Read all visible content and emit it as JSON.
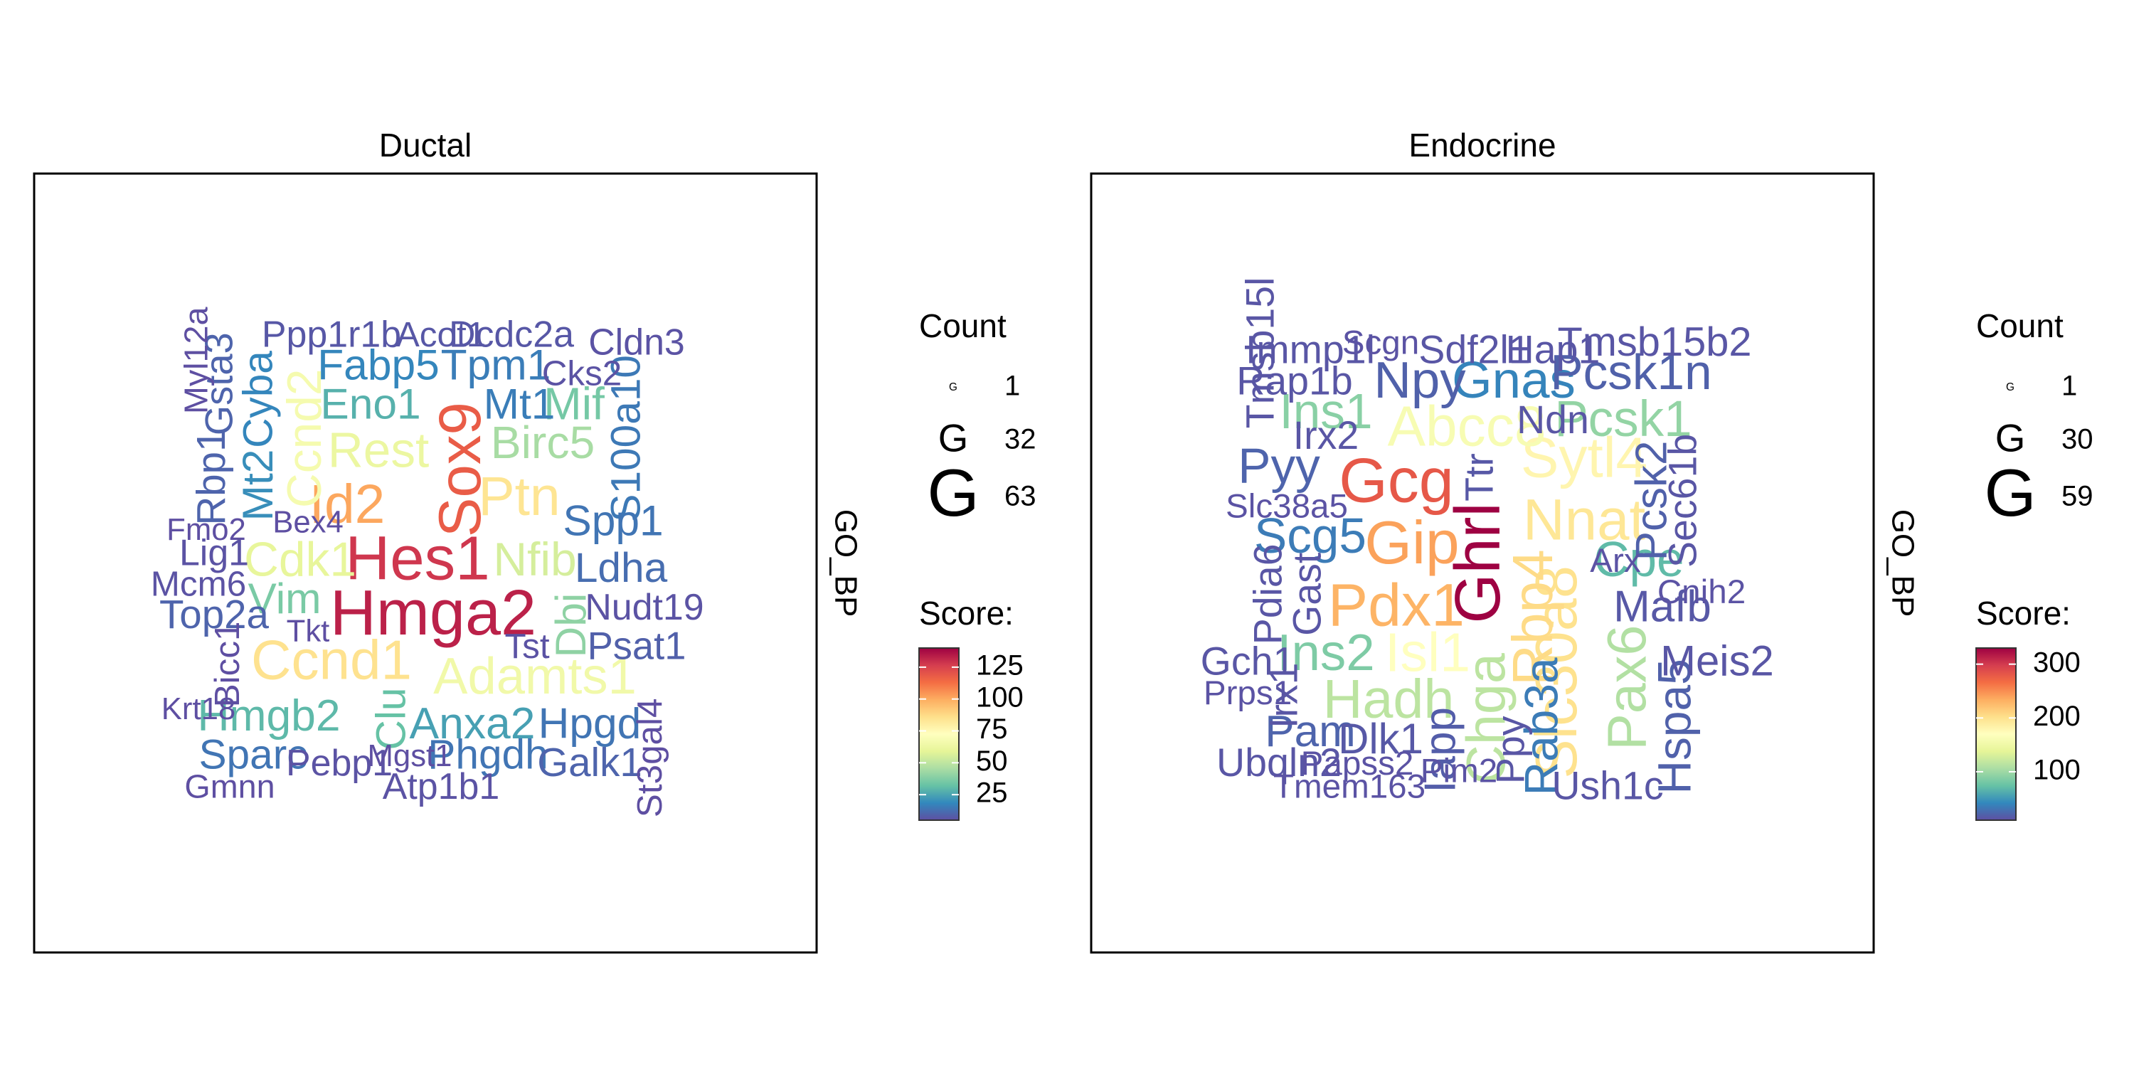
{
  "chart_data": [
    {
      "type": "wordcloud",
      "title": "Ductal",
      "strip_label": "GO_BP",
      "legend": {
        "count_title": "Count",
        "count_entries": [
          {
            "glyph": "G",
            "value": 1
          },
          {
            "glyph": "G",
            "value": 32
          },
          {
            "glyph": "G",
            "value": 63
          }
        ],
        "score_title": "Score:",
        "score_ticks": [
          25,
          50,
          75,
          100,
          125
        ],
        "score_range": [
          5,
          140
        ]
      },
      "words": [
        {
          "text": "Hmga2",
          "score": 133,
          "count": 63,
          "x": 0.51,
          "y": 0.57,
          "rot": 0
        },
        {
          "text": "Hes1",
          "score": 128,
          "count": 58,
          "x": 0.49,
          "y": 0.5,
          "rot": 0
        },
        {
          "text": "Sox9",
          "score": 118,
          "count": 52,
          "x": 0.55,
          "y": 0.38,
          "rot": -90
        },
        {
          "text": "Id2",
          "score": 101,
          "count": 42,
          "x": 0.4,
          "y": 0.43,
          "rot": 0
        },
        {
          "text": "Ptn",
          "score": 84,
          "count": 42,
          "x": 0.62,
          "y": 0.42,
          "rot": 0
        },
        {
          "text": "Ccnd1",
          "score": 85,
          "count": 44,
          "x": 0.38,
          "y": 0.63,
          "rot": 0
        },
        {
          "text": "Adamts1",
          "score": 65,
          "count": 36,
          "x": 0.64,
          "y": 0.65,
          "rot": 0
        },
        {
          "text": "Ccnd2",
          "score": 67,
          "count": 30,
          "x": 0.35,
          "y": 0.34,
          "rot": -90
        },
        {
          "text": "Rest",
          "score": 62,
          "count": 32,
          "x": 0.44,
          "y": 0.36,
          "rot": 0
        },
        {
          "text": "Cdk1",
          "score": 60,
          "count": 30,
          "x": 0.34,
          "y": 0.5,
          "rot": 0
        },
        {
          "text": "Nfib",
          "score": 55,
          "count": 28,
          "x": 0.64,
          "y": 0.5,
          "rot": 0
        },
        {
          "text": "Birc5",
          "score": 45,
          "count": 26,
          "x": 0.65,
          "y": 0.35,
          "rot": 0
        },
        {
          "text": "Mif",
          "score": 35,
          "count": 26,
          "x": 0.69,
          "y": 0.3,
          "rot": 0
        },
        {
          "text": "Dbi",
          "score": 40,
          "count": 22,
          "x": 0.69,
          "y": 0.58,
          "rot": -90
        },
        {
          "text": "Vim",
          "score": 36,
          "count": 22,
          "x": 0.32,
          "y": 0.55,
          "rot": 0
        },
        {
          "text": "Hmgb2",
          "score": 30,
          "count": 24,
          "x": 0.3,
          "y": 0.7,
          "rot": 0
        },
        {
          "text": "Eno1",
          "score": 28,
          "count": 22,
          "x": 0.43,
          "y": 0.3,
          "rot": 0
        },
        {
          "text": "Anxa2",
          "score": 24,
          "count": 24,
          "x": 0.56,
          "y": 0.71,
          "rot": 0
        },
        {
          "text": "Clu",
          "score": 32,
          "count": 20,
          "x": 0.46,
          "y": 0.7,
          "rot": -90
        },
        {
          "text": "Mt2",
          "score": 20,
          "count": 22,
          "x": 0.29,
          "y": 0.4,
          "rot": -90
        },
        {
          "text": "Cyba",
          "score": 18,
          "count": 20,
          "x": 0.29,
          "y": 0.29,
          "rot": -90
        },
        {
          "text": "Fabp5",
          "score": 18,
          "count": 22,
          "x": 0.44,
          "y": 0.25,
          "rot": 0
        },
        {
          "text": "Tpm1",
          "score": 16,
          "count": 22,
          "x": 0.59,
          "y": 0.25,
          "rot": 0
        },
        {
          "text": "Mt1",
          "score": 16,
          "count": 22,
          "x": 0.62,
          "y": 0.3,
          "rot": 0
        },
        {
          "text": "S100a10",
          "score": 15,
          "count": 20,
          "x": 0.76,
          "y": 0.34,
          "rot": -90
        },
        {
          "text": "Spp1",
          "score": 14,
          "count": 22,
          "x": 0.74,
          "y": 0.45,
          "rot": 0
        },
        {
          "text": "Ldha",
          "score": 12,
          "count": 20,
          "x": 0.75,
          "y": 0.51,
          "rot": 0
        },
        {
          "text": "Hpgd",
          "score": 14,
          "count": 22,
          "x": 0.71,
          "y": 0.71,
          "rot": 0
        },
        {
          "text": "Phgdh",
          "score": 14,
          "count": 20,
          "x": 0.58,
          "y": 0.75,
          "rot": 0
        },
        {
          "text": "Sparc",
          "score": 14,
          "count": 20,
          "x": 0.28,
          "y": 0.75,
          "rot": 0
        },
        {
          "text": "Galk1",
          "score": 10,
          "count": 18,
          "x": 0.71,
          "y": 0.76,
          "rot": 0
        },
        {
          "text": "Gsta3",
          "score": 10,
          "count": 16,
          "x": 0.24,
          "y": 0.27,
          "rot": -90
        },
        {
          "text": "Rbp1",
          "score": 10,
          "count": 18,
          "x": 0.23,
          "y": 0.39,
          "rot": -90
        },
        {
          "text": "Top2a",
          "score": 10,
          "count": 18,
          "x": 0.23,
          "y": 0.57,
          "rot": 0
        },
        {
          "text": "Psat1",
          "score": 9,
          "count": 16,
          "x": 0.77,
          "y": 0.61,
          "rot": 0
        },
        {
          "text": "Ppp1r1b",
          "score": 7,
          "count": 14,
          "x": 0.38,
          "y": 0.21,
          "rot": 0
        },
        {
          "text": "Acot1",
          "score": 7,
          "count": 12,
          "x": 0.52,
          "y": 0.21,
          "rot": 0
        },
        {
          "text": "Dcdc2a",
          "score": 7,
          "count": 14,
          "x": 0.61,
          "y": 0.21,
          "rot": 0
        },
        {
          "text": "Cldn3",
          "score": 6,
          "count": 14,
          "x": 0.77,
          "y": 0.22,
          "rot": 0
        },
        {
          "text": "Cks2",
          "score": 6,
          "count": 12,
          "x": 0.7,
          "y": 0.26,
          "rot": 0
        },
        {
          "text": "Myl12a",
          "score": 5,
          "count": 10,
          "x": 0.21,
          "y": 0.24,
          "rot": -90
        },
        {
          "text": "Fmo2",
          "score": 5,
          "count": 8,
          "x": 0.22,
          "y": 0.46,
          "rot": 0
        },
        {
          "text": "Bex4",
          "score": 5,
          "count": 8,
          "x": 0.35,
          "y": 0.45,
          "rot": 0
        },
        {
          "text": "Lig1",
          "score": 6,
          "count": 14,
          "x": 0.23,
          "y": 0.49,
          "rot": 0
        },
        {
          "text": "Mcm6",
          "score": 6,
          "count": 12,
          "x": 0.21,
          "y": 0.53,
          "rot": 0
        },
        {
          "text": "Nudt19",
          "score": 6,
          "count": 14,
          "x": 0.78,
          "y": 0.56,
          "rot": 0
        },
        {
          "text": "Tkt",
          "score": 5,
          "count": 8,
          "x": 0.35,
          "y": 0.59,
          "rot": 0
        },
        {
          "text": "Tst",
          "score": 6,
          "count": 12,
          "x": 0.63,
          "y": 0.61,
          "rot": 0
        },
        {
          "text": "Bicc1",
          "score": 5,
          "count": 12,
          "x": 0.25,
          "y": 0.63,
          "rot": -90
        },
        {
          "text": "Krt18",
          "score": 5,
          "count": 8,
          "x": 0.21,
          "y": 0.69,
          "rot": 0
        },
        {
          "text": "St3gal4",
          "score": 5,
          "count": 12,
          "x": 0.79,
          "y": 0.75,
          "rot": -90
        },
        {
          "text": "Pebp1",
          "score": 6,
          "count": 14,
          "x": 0.39,
          "y": 0.76,
          "rot": 0
        },
        {
          "text": "Mgst1",
          "score": 5,
          "count": 8,
          "x": 0.48,
          "y": 0.75,
          "rot": 0
        },
        {
          "text": "Atp1b1",
          "score": 6,
          "count": 14,
          "x": 0.52,
          "y": 0.79,
          "rot": 0
        },
        {
          "text": "Gmnn",
          "score": 5,
          "count": 10,
          "x": 0.25,
          "y": 0.79,
          "rot": 0
        }
      ]
    },
    {
      "type": "wordcloud",
      "title": "Endocrine",
      "strip_label": "GO_BP",
      "legend": {
        "count_title": "Count",
        "count_entries": [
          {
            "glyph": "G",
            "value": 1
          },
          {
            "glyph": "G",
            "value": 30
          },
          {
            "glyph": "G",
            "value": 59
          }
        ],
        "score_title": "Score:",
        "score_ticks": [
          100,
          200,
          300
        ],
        "score_range": [
          10,
          330
        ]
      },
      "words": [
        {
          "text": "Ghrl",
          "score": 330,
          "count": 59,
          "x": 0.5,
          "y": 0.5,
          "rot": -90
        },
        {
          "text": "Gcg",
          "score": 280,
          "count": 56,
          "x": 0.39,
          "y": 0.4,
          "rot": 0
        },
        {
          "text": "Gip",
          "score": 240,
          "count": 52,
          "x": 0.41,
          "y": 0.48,
          "rot": 0
        },
        {
          "text": "Pdx1",
          "score": 230,
          "count": 50,
          "x": 0.39,
          "y": 0.56,
          "rot": 0
        },
        {
          "text": "Slc30a8",
          "score": 200,
          "count": 48,
          "x": 0.6,
          "y": 0.64,
          "rot": -90
        },
        {
          "text": "Nnat",
          "score": 195,
          "count": 46,
          "x": 0.63,
          "y": 0.45,
          "rot": 0
        },
        {
          "text": "Rbp4",
          "score": 205,
          "count": 44,
          "x": 0.57,
          "y": 0.57,
          "rot": -90
        },
        {
          "text": "Sytl4",
          "score": 180,
          "count": 44,
          "x": 0.63,
          "y": 0.37,
          "rot": 0
        },
        {
          "text": "Abcc8",
          "score": 160,
          "count": 44,
          "x": 0.48,
          "y": 0.33,
          "rot": 0
        },
        {
          "text": "Isl1",
          "score": 170,
          "count": 40,
          "x": 0.43,
          "y": 0.62,
          "rot": 0
        },
        {
          "text": "Chga",
          "score": 115,
          "count": 40,
          "x": 0.51,
          "y": 0.7,
          "rot": -90
        },
        {
          "text": "Hadh",
          "score": 115,
          "count": 40,
          "x": 0.38,
          "y": 0.68,
          "rot": 0
        },
        {
          "text": "Pax6",
          "score": 110,
          "count": 40,
          "x": 0.69,
          "y": 0.66,
          "rot": -90
        },
        {
          "text": "Pcsk1",
          "score": 95,
          "count": 32,
          "x": 0.68,
          "y": 0.32,
          "rot": 0
        },
        {
          "text": "Ins1",
          "score": 90,
          "count": 30,
          "x": 0.3,
          "y": 0.31,
          "rot": 0
        },
        {
          "text": "Ins2",
          "score": 85,
          "count": 34,
          "x": 0.3,
          "y": 0.62,
          "rot": 0
        },
        {
          "text": "Cpe",
          "score": 70,
          "count": 30,
          "x": 0.7,
          "y": 0.5,
          "rot": 0
        },
        {
          "text": "Scg5",
          "score": 35,
          "count": 30,
          "x": 0.28,
          "y": 0.47,
          "rot": 0
        },
        {
          "text": "Gnas",
          "score": 40,
          "count": 34,
          "x": 0.54,
          "y": 0.27,
          "rot": 0
        },
        {
          "text": "Npy",
          "score": 20,
          "count": 34,
          "x": 0.42,
          "y": 0.27,
          "rot": 0
        },
        {
          "text": "Pcsk1n",
          "score": 20,
          "count": 30,
          "x": 0.69,
          "y": 0.26,
          "rot": 0
        },
        {
          "text": "Pyy",
          "score": 22,
          "count": 30,
          "x": 0.24,
          "y": 0.38,
          "rot": 0
        },
        {
          "text": "Rab3a",
          "score": 35,
          "count": 26,
          "x": 0.58,
          "y": 0.71,
          "rot": -90
        },
        {
          "text": "Pam",
          "score": 22,
          "count": 22,
          "x": 0.28,
          "y": 0.72,
          "rot": 0
        },
        {
          "text": "Pcsk2",
          "score": 20,
          "count": 22,
          "x": 0.72,
          "y": 0.42,
          "rot": -90
        },
        {
          "text": "Hspa5",
          "score": 20,
          "count": 26,
          "x": 0.75,
          "y": 0.71,
          "rot": -90
        },
        {
          "text": "Mafb",
          "score": 15,
          "count": 22,
          "x": 0.73,
          "y": 0.56,
          "rot": 0
        },
        {
          "text": "Iapp",
          "score": 18,
          "count": 22,
          "x": 0.45,
          "y": 0.74,
          "rot": -90
        },
        {
          "text": "Dlk1",
          "score": 15,
          "count": 20,
          "x": 0.37,
          "y": 0.73,
          "rot": 0
        },
        {
          "text": "Ttr",
          "score": 15,
          "count": 16,
          "x": 0.5,
          "y": 0.39,
          "rot": -90
        },
        {
          "text": "Meis2",
          "score": 14,
          "count": 20,
          "x": 0.8,
          "y": 0.63,
          "rot": 0
        },
        {
          "text": "Tmsb15b2",
          "score": 14,
          "count": 18,
          "x": 0.72,
          "y": 0.22,
          "rot": 0
        },
        {
          "text": "Hap1",
          "score": 14,
          "count": 16,
          "x": 0.59,
          "y": 0.23,
          "rot": 0
        },
        {
          "text": "Sdf2l1",
          "score": 14,
          "count": 16,
          "x": 0.49,
          "y": 0.23,
          "rot": 0
        },
        {
          "text": "Immp1l",
          "score": 14,
          "count": 16,
          "x": 0.28,
          "y": 0.23,
          "rot": 0
        },
        {
          "text": "Rap1b",
          "score": 14,
          "count": 16,
          "x": 0.26,
          "y": 0.27,
          "rot": 0
        },
        {
          "text": "Scgn",
          "score": 12,
          "count": 10,
          "x": 0.37,
          "y": 0.22,
          "rot": 0
        },
        {
          "text": "Tmsb15l",
          "score": 14,
          "count": 16,
          "x": 0.22,
          "y": 0.23,
          "rot": -90
        },
        {
          "text": "Irx2",
          "score": 14,
          "count": 16,
          "x": 0.3,
          "y": 0.34,
          "rot": 0
        },
        {
          "text": "Ndn",
          "score": 14,
          "count": 16,
          "x": 0.59,
          "y": 0.32,
          "rot": 0
        },
        {
          "text": "Slc38a5",
          "score": 12,
          "count": 10,
          "x": 0.25,
          "y": 0.43,
          "rot": 0
        },
        {
          "text": "Sec61b",
          "score": 14,
          "count": 16,
          "x": 0.76,
          "y": 0.42,
          "rot": -90
        },
        {
          "text": "Arx",
          "score": 12,
          "count": 10,
          "x": 0.67,
          "y": 0.5,
          "rot": 0
        },
        {
          "text": "Cnih2",
          "score": 12,
          "count": 10,
          "x": 0.78,
          "y": 0.54,
          "rot": 0
        },
        {
          "text": "Pdia6",
          "score": 14,
          "count": 16,
          "x": 0.23,
          "y": 0.54,
          "rot": -90
        },
        {
          "text": "Gast",
          "score": 14,
          "count": 16,
          "x": 0.28,
          "y": 0.54,
          "rot": -90
        },
        {
          "text": "Gch1",
          "score": 14,
          "count": 16,
          "x": 0.2,
          "y": 0.63,
          "rot": 0
        },
        {
          "text": "Prps1",
          "score": 12,
          "count": 10,
          "x": 0.2,
          "y": 0.67,
          "rot": 0
        },
        {
          "text": "Irx1",
          "score": 14,
          "count": 16,
          "x": 0.25,
          "y": 0.67,
          "rot": -90
        },
        {
          "text": "Ubqln2",
          "score": 14,
          "count": 16,
          "x": 0.24,
          "y": 0.76,
          "rot": 0
        },
        {
          "text": "Papss2",
          "score": 12,
          "count": 10,
          "x": 0.34,
          "y": 0.76,
          "rot": 0
        },
        {
          "text": "Tmem163",
          "score": 12,
          "count": 10,
          "x": 0.33,
          "y": 0.79,
          "rot": 0
        },
        {
          "text": "Pim2",
          "score": 12,
          "count": 10,
          "x": 0.47,
          "y": 0.77,
          "rot": 0
        },
        {
          "text": "Ppy",
          "score": 14,
          "count": 16,
          "x": 0.54,
          "y": 0.74,
          "rot": -90
        },
        {
          "text": "Ush1c",
          "score": 14,
          "count": 16,
          "x": 0.66,
          "y": 0.79,
          "rot": 0
        }
      ]
    }
  ]
}
